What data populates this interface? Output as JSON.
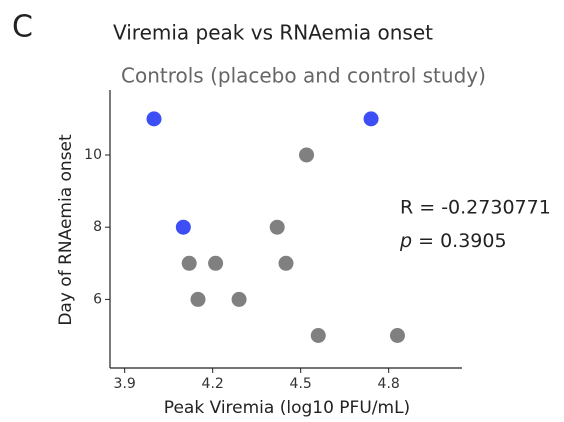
{
  "panel_label": "C",
  "chart_data": {
    "type": "scatter",
    "title": "Viremia peak vs RNAemia onset",
    "subtitle": "Controls (placebo and control study)",
    "x_label": "Peak Viremia (log10 PFU/mL)",
    "y_label": "Day of RNAemia onset",
    "xlim": [
      3.85,
      5.05
    ],
    "xticks": [
      3.9,
      4.2,
      4.5,
      4.8
    ],
    "ylim": [
      4.1,
      11.8
    ],
    "yticks": [
      6,
      8,
      10
    ],
    "grid": false,
    "series": [
      {
        "color": "#3d4ef5",
        "x": [
          4.0,
          4.1,
          4.74
        ],
        "values": [
          11,
          8,
          11
        ]
      },
      {
        "color": "#808080",
        "x": [
          4.52,
          4.42,
          4.12,
          4.21,
          4.45,
          4.15,
          4.29,
          4.56,
          4.83
        ],
        "values": [
          10,
          8,
          7,
          7,
          7,
          6,
          6,
          5,
          5
        ]
      }
    ],
    "annotation_r": "R = -0.2730771",
    "annotation_p_symbol": "p",
    "annotation_p_text": "= 0.3905"
  }
}
